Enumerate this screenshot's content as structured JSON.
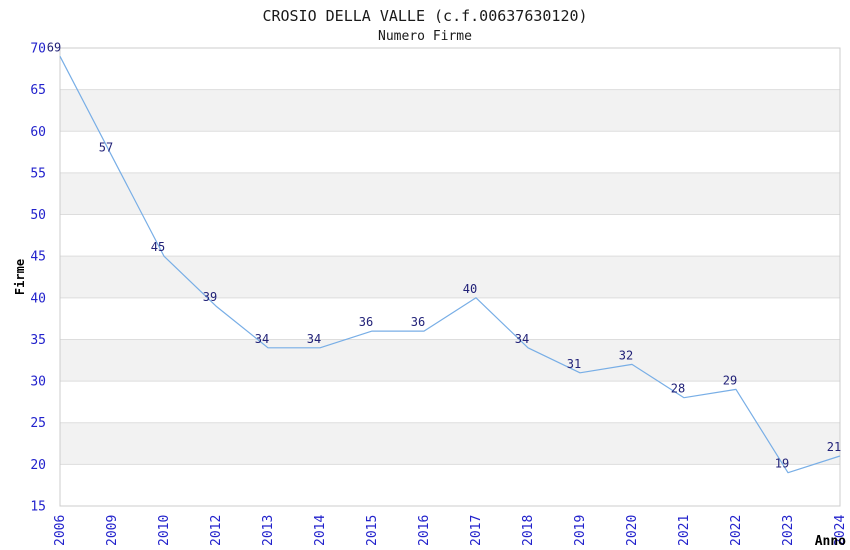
{
  "title": "CROSIO DELLA VALLE (c.f.00637630120)",
  "subtitle": "Numero Firme",
  "chart_data": {
    "type": "line",
    "title": "CROSIO DELLA VALLE (c.f.00637630120)",
    "subtitle": "Numero Firme",
    "xlabel": "Anno",
    "ylabel": "Firme",
    "categories": [
      "2006",
      "2009",
      "2010",
      "2012",
      "2013",
      "2014",
      "2015",
      "2016",
      "2017",
      "2018",
      "2019",
      "2020",
      "2021",
      "2022",
      "2023",
      "2024"
    ],
    "values": [
      69,
      57,
      45,
      39,
      34,
      34,
      36,
      36,
      40,
      34,
      31,
      32,
      28,
      29,
      19,
      21
    ],
    "ylim": [
      15,
      70
    ],
    "ytick_step": 5,
    "grid": true,
    "legend_position": "none",
    "band_fill_alternating": true,
    "colors": {
      "background": "#ffffff",
      "line": "#78aee6",
      "tick_label": "#2222cc",
      "data_label": "#222278",
      "band": "#f2f2f2",
      "gridline": "#dddddd",
      "border": "#cccccc",
      "axis_title": "#000000",
      "title_text": "#1a1a1a"
    }
  }
}
